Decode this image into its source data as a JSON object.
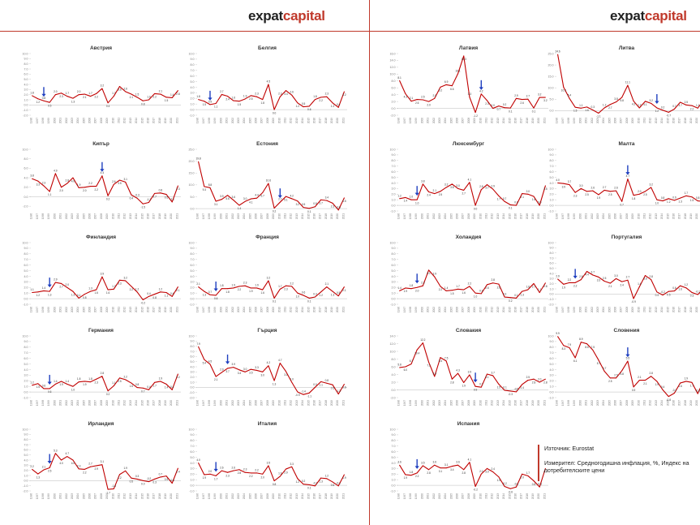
{
  "brand": {
    "left_a": "expat",
    "left_b": "capital",
    "right_a": "expat",
    "right_b": "capital"
  },
  "colors": {
    "line": "#c00000",
    "arrow": "#1f3fbf",
    "accent": "#c0392b"
  },
  "notes": {
    "source": "Източник: Eurostat",
    "measure": "Измерител: Средногодишна инфлация, %, Индекс на потребителските цени"
  },
  "chart_data": [
    {
      "type": "line",
      "title": "Австрия",
      "ylim": [
        -2,
        10
      ],
      "arrow_index": 2,
      "categories": [
        "1996",
        "1997",
        "1998",
        "1999",
        "2000",
        "2001",
        "2002",
        "2003",
        "2004",
        "2005",
        "2006",
        "2007",
        "2008",
        "2009",
        "2010",
        "2011",
        "2012",
        "2013",
        "2014",
        "2015",
        "2016",
        "2017",
        "2018",
        "2019",
        "2020",
        "2021"
      ],
      "values": [
        1.8,
        1.2,
        0.8,
        0.5,
        2.0,
        2.3,
        1.7,
        1.3,
        2.0,
        2.1,
        1.7,
        2.2,
        3.2,
        0.4,
        1.7,
        3.6,
        2.6,
        2.1,
        1.5,
        0.8,
        1.0,
        2.2,
        2.1,
        1.5,
        1.4,
        2.8
      ]
    },
    {
      "type": "line",
      "title": "Белгия",
      "ylim": [
        -1,
        10
      ],
      "arrow_index": 2,
      "categories": [
        "1996",
        "1997",
        "1998",
        "1999",
        "2000",
        "2001",
        "2002",
        "2003",
        "2004",
        "2005",
        "2006",
        "2007",
        "2008",
        "2009",
        "2010",
        "2011",
        "2012",
        "2013",
        "2014",
        "2015",
        "2016",
        "2017",
        "2018",
        "2019",
        "2020",
        "2021"
      ],
      "values": [
        1.8,
        1.5,
        0.9,
        1.1,
        2.7,
        2.4,
        1.6,
        1.5,
        1.9,
        2.5,
        2.3,
        1.8,
        4.5,
        0.0,
        2.3,
        3.4,
        2.6,
        1.2,
        0.5,
        0.6,
        1.8,
        2.2,
        2.3,
        1.2,
        0.4,
        3.2
      ]
    },
    {
      "type": "line",
      "title": "Кипър",
      "ylim": [
        -3,
        10
      ],
      "arrow_index": 12,
      "categories": [
        "1996",
        "1997",
        "1998",
        "1999",
        "2000",
        "2001",
        "2002",
        "2003",
        "2004",
        "2005",
        "2006",
        "2007",
        "2008",
        "2009",
        "2010",
        "2011",
        "2012",
        "2013",
        "2014",
        "2015",
        "2016",
        "2017",
        "2018",
        "2019",
        "2020",
        "2021"
      ],
      "values": [
        3.8,
        3.3,
        2.3,
        1.1,
        4.9,
        2.0,
        2.8,
        4.0,
        1.9,
        2.0,
        2.2,
        2.2,
        4.4,
        0.2,
        2.6,
        3.5,
        3.1,
        0.4,
        -0.3,
        -1.5,
        -1.2,
        0.7,
        0.8,
        0.5,
        -1.1,
        2.3
      ]
    },
    {
      "type": "line",
      "title": "Естония",
      "ylim": [
        -1,
        25
      ],
      "arrow_index": 14,
      "categories": [
        "1996",
        "1997",
        "1998",
        "1999",
        "2000",
        "2001",
        "2002",
        "2003",
        "2004",
        "2005",
        "2006",
        "2007",
        "2008",
        "2009",
        "2010",
        "2011",
        "2012",
        "2013",
        "2014",
        "2015",
        "2016",
        "2017",
        "2018",
        "2019",
        "2020",
        "2021"
      ],
      "values": [
        19.8,
        9.3,
        8.8,
        3.1,
        3.9,
        5.6,
        3.6,
        1.4,
        3.0,
        4.1,
        4.4,
        6.7,
        10.6,
        0.2,
        2.7,
        5.1,
        4.2,
        3.2,
        0.5,
        0.1,
        0.8,
        3.7,
        3.4,
        2.3,
        -0.6,
        4.5
      ]
    },
    {
      "type": "line",
      "title": "Финландия",
      "ylim": [
        -1,
        10
      ],
      "arrow_index": 3,
      "categories": [
        "1996",
        "1997",
        "1998",
        "1999",
        "2000",
        "2001",
        "2002",
        "2003",
        "2004",
        "2005",
        "2006",
        "2007",
        "2008",
        "2009",
        "2010",
        "2011",
        "2012",
        "2013",
        "2014",
        "2015",
        "2016",
        "2017",
        "2018",
        "2019",
        "2020",
        "2021"
      ],
      "values": [
        1.1,
        1.2,
        1.4,
        1.3,
        2.9,
        2.7,
        2.0,
        1.3,
        0.1,
        0.8,
        1.3,
        1.6,
        3.9,
        1.6,
        1.7,
        3.3,
        3.2,
        2.2,
        1.2,
        -0.2,
        0.4,
        0.8,
        1.2,
        1.1,
        0.4,
        2.1
      ]
    },
    {
      "type": "line",
      "title": "Франция",
      "ylim": [
        -1,
        10
      ],
      "arrow_index": 3,
      "categories": [
        "1996",
        "1997",
        "1998",
        "1999",
        "2000",
        "2001",
        "2002",
        "2003",
        "2004",
        "2005",
        "2006",
        "2007",
        "2008",
        "2009",
        "2010",
        "2011",
        "2012",
        "2013",
        "2014",
        "2015",
        "2016",
        "2017",
        "2018",
        "2019",
        "2020",
        "2021"
      ],
      "values": [
        2.1,
        1.3,
        0.7,
        0.6,
        1.8,
        1.8,
        1.9,
        2.2,
        2.3,
        1.9,
        1.9,
        1.6,
        3.2,
        0.1,
        1.7,
        2.3,
        2.2,
        1.0,
        0.6,
        0.1,
        0.3,
        1.2,
        2.1,
        1.3,
        0.5,
        2.1
      ]
    },
    {
      "type": "line",
      "title": "Германия",
      "ylim": [
        -1,
        10
      ],
      "arrow_index": 3,
      "categories": [
        "1996",
        "1997",
        "1998",
        "1999",
        "2000",
        "2001",
        "2002",
        "2003",
        "2004",
        "2005",
        "2006",
        "2007",
        "2008",
        "2009",
        "2010",
        "2011",
        "2012",
        "2013",
        "2014",
        "2015",
        "2016",
        "2017",
        "2018",
        "2019",
        "2020",
        "2021"
      ],
      "values": [
        1.2,
        1.5,
        0.6,
        0.6,
        1.4,
        1.9,
        1.4,
        1.0,
        1.8,
        1.9,
        1.8,
        2.3,
        2.8,
        0.2,
        1.1,
        2.5,
        2.2,
        1.6,
        0.8,
        0.7,
        0.4,
        1.7,
        1.9,
        1.4,
        0.4,
        3.2
      ]
    },
    {
      "type": "line",
      "title": "Гърция",
      "ylim": [
        -2,
        10
      ],
      "arrow_index": 5,
      "categories": [
        "1996",
        "1997",
        "1998",
        "1999",
        "2000",
        "2001",
        "2002",
        "2003",
        "2004",
        "2005",
        "2006",
        "2007",
        "2008",
        "2009",
        "2010",
        "2011",
        "2012",
        "2013",
        "2014",
        "2015",
        "2016",
        "2017",
        "2018",
        "2019",
        "2020",
        "2021"
      ],
      "values": [
        7.9,
        5.4,
        4.5,
        2.1,
        2.9,
        3.7,
        3.9,
        3.4,
        3.0,
        3.5,
        3.3,
        3.0,
        4.2,
        1.3,
        4.7,
        3.1,
        1.0,
        -0.9,
        -1.4,
        -1.1,
        0.0,
        1.1,
        0.8,
        0.5,
        -1.3,
        0.6
      ]
    },
    {
      "type": "line",
      "title": "Ирландия",
      "ylim": [
        -2,
        10
      ],
      "arrow_index": 3,
      "categories": [
        "1996",
        "1997",
        "1998",
        "1999",
        "2000",
        "2001",
        "2002",
        "2003",
        "2004",
        "2005",
        "2006",
        "2007",
        "2008",
        "2009",
        "2010",
        "2011",
        "2012",
        "2013",
        "2014",
        "2015",
        "2016",
        "2017",
        "2018",
        "2019",
        "2020",
        "2021"
      ],
      "values": [
        2.2,
        1.3,
        2.1,
        2.5,
        5.3,
        4.0,
        4.7,
        4.0,
        2.3,
        2.2,
        2.7,
        2.9,
        3.1,
        -1.7,
        -1.6,
        1.2,
        1.9,
        0.5,
        0.3,
        0.0,
        -0.2,
        0.3,
        0.7,
        0.9,
        -0.5,
        2.4
      ]
    },
    {
      "type": "line",
      "title": "Италия",
      "ylim": [
        -1,
        10
      ],
      "arrow_index": 3,
      "categories": [
        "1996",
        "1997",
        "1998",
        "1999",
        "2000",
        "2001",
        "2002",
        "2003",
        "2004",
        "2005",
        "2006",
        "2007",
        "2008",
        "2009",
        "2010",
        "2011",
        "2012",
        "2013",
        "2014",
        "2015",
        "2016",
        "2017",
        "2018",
        "2019",
        "2020",
        "2021"
      ],
      "values": [
        4.0,
        1.9,
        2.0,
        1.7,
        2.6,
        2.3,
        2.6,
        2.8,
        2.3,
        2.2,
        2.2,
        2.0,
        3.5,
        0.8,
        1.6,
        2.9,
        3.3,
        1.2,
        0.2,
        0.1,
        -0.1,
        1.3,
        1.2,
        0.6,
        -0.1,
        1.9
      ]
    },
    {
      "type": "line",
      "title": "Латвия",
      "ylim": [
        -2,
        16
      ],
      "arrow_index": 14,
      "categories": [
        "1996",
        "1997",
        "1998",
        "1999",
        "2000",
        "2001",
        "2002",
        "2003",
        "2004",
        "2005",
        "2006",
        "2007",
        "2008",
        "2009",
        "2010",
        "2011",
        "2012",
        "2013",
        "2014",
        "2015",
        "2016",
        "2017",
        "2018",
        "2019",
        "2020",
        "2021"
      ],
      "values": [
        8.1,
        4.3,
        2.1,
        2.6,
        2.5,
        2.0,
        2.9,
        6.2,
        6.9,
        6.6,
        10.1,
        15.3,
        3.3,
        -1.2,
        4.2,
        2.3,
        0.0,
        0.7,
        0.2,
        0.1,
        2.9,
        2.6,
        2.7,
        0.1,
        3.2,
        3.2
      ]
    },
    {
      "type": "line",
      "title": "Литва",
      "ylim": [
        -2,
        25
      ],
      "arrow_index": 17,
      "categories": [
        "1996",
        "1997",
        "1998",
        "1999",
        "2000",
        "2001",
        "2002",
        "2003",
        "2004",
        "2005",
        "2006",
        "2007",
        "2008",
        "2009",
        "2010",
        "2011",
        "2012",
        "2013",
        "2014",
        "2015",
        "2016",
        "2017",
        "2018",
        "2019",
        "2020",
        "2021"
      ],
      "values": [
        24.6,
        10.3,
        5.4,
        1.5,
        1.1,
        1.6,
        0.3,
        -1.1,
        1.2,
        2.7,
        3.8,
        5.8,
        11.1,
        4.2,
        1.2,
        4.1,
        3.2,
        1.2,
        0.2,
        -0.7,
        0.7,
        3.7,
        2.5,
        2.2,
        1.1,
        4.6
      ]
    },
    {
      "type": "line",
      "title": "Люксембург",
      "ylim": [
        -1,
        10
      ],
      "arrow_index": 3,
      "categories": [
        "1996",
        "1997",
        "1998",
        "1999",
        "2000",
        "2001",
        "2002",
        "2003",
        "2004",
        "2005",
        "2006",
        "2007",
        "2008",
        "2009",
        "2010",
        "2011",
        "2012",
        "2013",
        "2014",
        "2015",
        "2016",
        "2017",
        "2018",
        "2019",
        "2020",
        "2021"
      ],
      "values": [
        1.2,
        1.4,
        1.0,
        1.0,
        3.8,
        2.4,
        2.1,
        2.5,
        3.2,
        3.8,
        3.0,
        2.7,
        4.1,
        0.0,
        2.8,
        3.7,
        2.9,
        1.7,
        0.7,
        0.1,
        0.0,
        2.1,
        2.0,
        1.6,
        0.0,
        3.5
      ]
    },
    {
      "type": "line",
      "title": "Малта",
      "ylim": [
        -1,
        10
      ],
      "arrow_index": 12,
      "categories": [
        "1996",
        "1997",
        "1998",
        "1999",
        "2000",
        "2001",
        "2002",
        "2003",
        "2004",
        "2005",
        "2006",
        "2007",
        "2008",
        "2009",
        "2010",
        "2011",
        "2012",
        "2013",
        "2014",
        "2015",
        "2016",
        "2017",
        "2018",
        "2019",
        "2020",
        "2021"
      ],
      "values": [
        4.0,
        3.9,
        3.7,
        2.3,
        3.0,
        2.5,
        2.6,
        1.9,
        2.7,
        2.5,
        2.6,
        0.7,
        4.7,
        1.8,
        2.0,
        2.5,
        3.2,
        1.0,
        0.8,
        1.2,
        0.9,
        1.3,
        1.7,
        1.5,
        0.8,
        0.7
      ]
    },
    {
      "type": "line",
      "title": "Холандия",
      "ylim": [
        -1,
        10
      ],
      "arrow_index": 3,
      "categories": [
        "1996",
        "1997",
        "1998",
        "1999",
        "2000",
        "2001",
        "2002",
        "2003",
        "2004",
        "2005",
        "2006",
        "2007",
        "2008",
        "2009",
        "2010",
        "2011",
        "2012",
        "2013",
        "2014",
        "2015",
        "2016",
        "2017",
        "2018",
        "2019",
        "2020",
        "2021"
      ],
      "values": [
        1.4,
        1.9,
        1.8,
        2.0,
        2.3,
        5.1,
        3.9,
        2.2,
        1.4,
        1.5,
        1.7,
        1.6,
        2.2,
        1.0,
        0.9,
        2.5,
        2.8,
        2.6,
        0.3,
        0.2,
        0.1,
        1.3,
        1.6,
        2.7,
        1.1,
        2.8
      ]
    },
    {
      "type": "line",
      "title": "Португалия",
      "ylim": [
        -2,
        10
      ],
      "arrow_index": 3,
      "categories": [
        "1996",
        "1997",
        "1998",
        "1999",
        "2000",
        "2001",
        "2002",
        "2003",
        "2004",
        "2005",
        "2006",
        "2007",
        "2008",
        "2009",
        "2010",
        "2011",
        "2012",
        "2013",
        "2014",
        "2015",
        "2016",
        "2017",
        "2018",
        "2019",
        "2020",
        "2021"
      ],
      "values": [
        2.9,
        1.9,
        2.2,
        2.2,
        2.8,
        4.4,
        3.7,
        3.3,
        2.5,
        2.1,
        3.0,
        2.4,
        2.7,
        -0.9,
        1.4,
        3.6,
        2.8,
        0.4,
        -0.2,
        0.5,
        0.6,
        1.6,
        1.2,
        0.3,
        -0.1,
        0.9
      ]
    },
    {
      "type": "line",
      "title": "Словакия",
      "ylim": [
        -2,
        14
      ],
      "arrow_index": 13,
      "categories": [
        "1996",
        "1997",
        "1998",
        "1999",
        "2000",
        "2001",
        "2002",
        "2003",
        "2004",
        "2005",
        "2006",
        "2007",
        "2008",
        "2009",
        "2010",
        "2011",
        "2012",
        "2013",
        "2014",
        "2015",
        "2016",
        "2017",
        "2018",
        "2019",
        "2020",
        "2021"
      ],
      "values": [
        5.8,
        6.0,
        6.7,
        10.4,
        12.2,
        7.2,
        3.5,
        8.4,
        7.5,
        2.8,
        4.3,
        1.9,
        3.9,
        0.9,
        0.7,
        4.1,
        3.7,
        1.5,
        -0.1,
        -0.3,
        -0.5,
        1.4,
        2.5,
        2.8,
        2.0,
        2.8
      ]
    },
    {
      "type": "line",
      "title": "Словения",
      "ylim": [
        -1,
        10
      ],
      "arrow_index": 12,
      "categories": [
        "1996",
        "1997",
        "1998",
        "1999",
        "2000",
        "2001",
        "2002",
        "2003",
        "2004",
        "2005",
        "2006",
        "2007",
        "2008",
        "2009",
        "2010",
        "2011",
        "2012",
        "2013",
        "2014",
        "2015",
        "2016",
        "2017",
        "2018",
        "2019",
        "2020",
        "2021"
      ],
      "values": [
        9.9,
        8.3,
        7.9,
        6.1,
        8.9,
        8.6,
        7.5,
        5.7,
        3.7,
        2.5,
        2.5,
        3.8,
        5.5,
        0.9,
        2.1,
        2.1,
        2.8,
        1.9,
        0.4,
        -0.8,
        -0.2,
        1.6,
        1.9,
        1.7,
        -0.3,
        2.0
      ]
    },
    {
      "type": "line",
      "title": "Испания",
      "ylim": [
        -1,
        10
      ],
      "arrow_index": 3,
      "categories": [
        "1996",
        "1997",
        "1998",
        "1999",
        "2000",
        "2001",
        "2002",
        "2003",
        "2004",
        "2005",
        "2006",
        "2007",
        "2008",
        "2009",
        "2010",
        "2011",
        "2012",
        "2013",
        "2014",
        "2015",
        "2016",
        "2017",
        "2018",
        "2019",
        "2020",
        "2021"
      ],
      "values": [
        3.6,
        1.9,
        1.8,
        2.2,
        3.5,
        2.8,
        3.6,
        3.1,
        3.1,
        3.4,
        3.6,
        2.8,
        4.1,
        -0.2,
        2.0,
        3.0,
        2.4,
        1.5,
        -0.2,
        -0.6,
        -0.3,
        2.0,
        1.7,
        0.8,
        -0.3,
        3.0
      ]
    }
  ]
}
